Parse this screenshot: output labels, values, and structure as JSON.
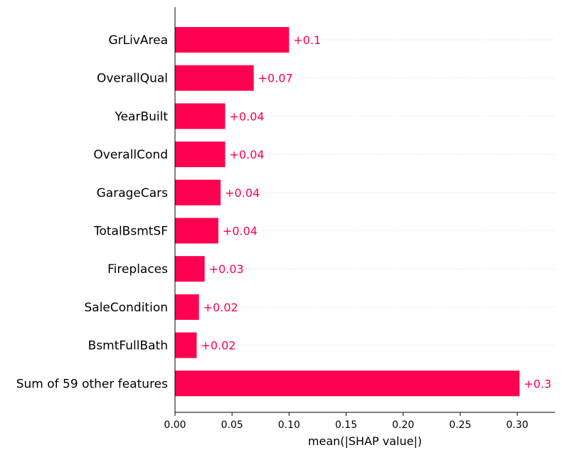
{
  "chart_data": {
    "type": "bar",
    "orientation": "horizontal",
    "categories": [
      "GrLivArea",
      "OverallQual",
      "YearBuilt",
      "OverallCond",
      "GarageCars",
      "TotalBsmtSF",
      "Fireplaces",
      "SaleCondition",
      "BsmtFullBath",
      "Sum of 59 other features"
    ],
    "values": [
      0.1,
      0.069,
      0.044,
      0.044,
      0.04,
      0.038,
      0.026,
      0.021,
      0.019,
      0.302
    ],
    "value_labels": [
      "+0.1",
      "+0.07",
      "+0.04",
      "+0.04",
      "+0.04",
      "+0.04",
      "+0.03",
      "+0.02",
      "+0.02",
      "+0.3"
    ],
    "xlabel": "mean(|SHAP value|)",
    "ylabel": "",
    "xlim": [
      0,
      0.333
    ],
    "xticks": [
      0.0,
      0.05,
      0.1,
      0.15,
      0.2,
      0.25,
      0.3
    ],
    "xtick_labels": [
      "0.00",
      "0.05",
      "0.10",
      "0.15",
      "0.20",
      "0.25",
      "0.30"
    ],
    "grid": "horizontal dotted lines per bar",
    "bar_color": "#ff0051",
    "label_color": "#ff0051"
  }
}
